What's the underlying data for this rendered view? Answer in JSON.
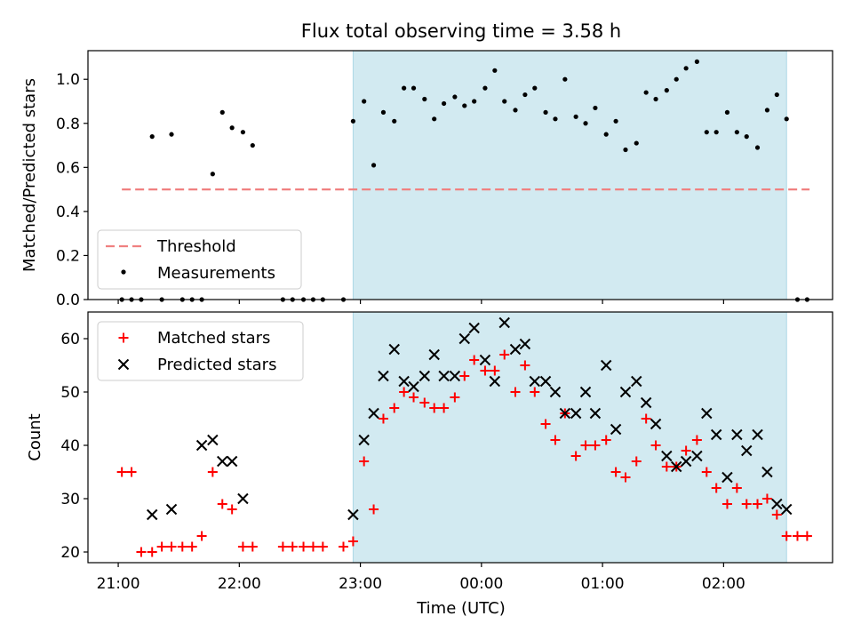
{
  "chart_data": {
    "title": "Flux total observing time = 3.58 h",
    "xlabel": "Time (UTC)",
    "x_ticks": [
      "21:00",
      "22:00",
      "23:00",
      "00:00",
      "01:00",
      "02:00"
    ],
    "x_tick_hours": [
      0,
      1,
      2,
      3,
      4,
      5
    ],
    "x_range_hours": [
      -0.25,
      5.9
    ],
    "x_unit_note": "hours after 21:00 UTC",
    "shaded_span_hours": [
      1.94,
      5.52
    ],
    "colors": {
      "span": "#add8e6",
      "threshold": "#f08080",
      "matched": "#ff0000",
      "predicted": "#000000",
      "measurements": "#000000"
    },
    "panels": [
      {
        "type": "scatter",
        "ylabel": "Matched/Predicted stars",
        "ylim": [
          0,
          1.13
        ],
        "yticks": [
          0.0,
          0.2,
          0.4,
          0.6,
          0.8,
          1.0
        ],
        "ytick_labels": [
          "0.0",
          "0.2",
          "0.4",
          "0.6",
          "0.8",
          "1.0"
        ],
        "legend_position": "lower-left",
        "threshold": {
          "name": "Threshold",
          "value": 0.5,
          "x_range": [
            0.03,
            5.71
          ]
        },
        "series": [
          {
            "name": "Measurements",
            "x": [
              0.03,
              0.11,
              0.19,
              0.28,
              0.36,
              0.44,
              0.53,
              0.61,
              0.69,
              0.78,
              0.86,
              0.94,
              1.03,
              1.11,
              1.36,
              1.44,
              1.53,
              1.61,
              1.69,
              1.86,
              1.94,
              2.03,
              2.11,
              2.19,
              2.28,
              2.36,
              2.44,
              2.53,
              2.61,
              2.69,
              2.78,
              2.86,
              2.94,
              3.03,
              3.11,
              3.19,
              3.28,
              3.36,
              3.44,
              3.53,
              3.61,
              3.69,
              3.78,
              3.86,
              3.94,
              4.03,
              4.11,
              4.19,
              4.28,
              4.36,
              4.44,
              4.53,
              4.61,
              4.69,
              4.78,
              4.86,
              4.94,
              5.03,
              5.11,
              5.19,
              5.28,
              5.36,
              5.44,
              5.52,
              5.61,
              5.69
            ],
            "y": [
              0.0,
              0.0,
              0.0,
              0.74,
              0.0,
              0.75,
              0.0,
              0.0,
              0.0,
              0.57,
              0.85,
              0.78,
              0.76,
              0.7,
              0.0,
              0.0,
              0.0,
              0.0,
              0.0,
              0.0,
              0.81,
              0.9,
              0.61,
              0.85,
              0.81,
              0.96,
              0.96,
              0.91,
              0.82,
              0.89,
              0.92,
              0.88,
              0.9,
              0.96,
              1.04,
              0.9,
              0.86,
              0.93,
              0.96,
              0.85,
              0.82,
              1.0,
              0.83,
              0.8,
              0.87,
              0.75,
              0.81,
              0.68,
              0.71,
              0.94,
              0.91,
              0.95,
              1.0,
              1.05,
              1.08,
              0.76,
              0.76,
              0.85,
              0.76,
              0.74,
              0.69,
              0.86,
              0.93,
              0.82,
              0.0,
              0.0
            ]
          }
        ]
      },
      {
        "type": "scatter",
        "ylabel": "Count",
        "ylim": [
          18,
          65
        ],
        "yticks": [
          20,
          30,
          40,
          50,
          60
        ],
        "ytick_labels": [
          "20",
          "30",
          "40",
          "50",
          "60"
        ],
        "legend_position": "upper-left",
        "series": [
          {
            "name": "Matched stars",
            "marker": "plus",
            "x": [
              0.03,
              0.11,
              0.19,
              0.28,
              0.36,
              0.44,
              0.53,
              0.61,
              0.69,
              0.78,
              0.86,
              0.94,
              1.03,
              1.11,
              1.36,
              1.44,
              1.53,
              1.61,
              1.69,
              1.86,
              1.94,
              2.03,
              2.11,
              2.19,
              2.28,
              2.36,
              2.44,
              2.53,
              2.61,
              2.69,
              2.78,
              2.86,
              2.94,
              3.03,
              3.11,
              3.19,
              3.28,
              3.36,
              3.44,
              3.53,
              3.61,
              3.69,
              3.78,
              3.86,
              3.94,
              4.03,
              4.11,
              4.19,
              4.28,
              4.36,
              4.44,
              4.53,
              4.61,
              4.69,
              4.78,
              4.86,
              4.94,
              5.03,
              5.11,
              5.19,
              5.28,
              5.36,
              5.44,
              5.52,
              5.61,
              5.69
            ],
            "y": [
              35,
              35,
              20,
              20,
              21,
              21,
              21,
              21,
              23,
              35,
              29,
              28,
              21,
              21,
              21,
              21,
              21,
              21,
              21,
              21,
              22,
              37,
              28,
              45,
              47,
              50,
              49,
              48,
              47,
              47,
              49,
              53,
              56,
              54,
              54,
              57,
              50,
              55,
              50,
              44,
              41,
              46,
              38,
              40,
              40,
              41,
              35,
              34,
              37,
              45,
              40,
              36,
              36,
              39,
              41,
              35,
              32,
              29,
              32,
              29,
              29,
              30,
              27,
              23,
              23,
              23
            ]
          },
          {
            "name": "Predicted stars",
            "marker": "x",
            "x": [
              0.28,
              0.44,
              0.69,
              0.78,
              0.86,
              0.94,
              1.03,
              1.94,
              2.03,
              2.11,
              2.19,
              2.28,
              2.36,
              2.44,
              2.53,
              2.61,
              2.69,
              2.78,
              2.86,
              2.94,
              3.03,
              3.11,
              3.19,
              3.28,
              3.36,
              3.44,
              3.53,
              3.61,
              3.69,
              3.78,
              3.86,
              3.94,
              4.03,
              4.11,
              4.19,
              4.28,
              4.36,
              4.44,
              4.53,
              4.61,
              4.69,
              4.78,
              4.86,
              4.94,
              5.03,
              5.11,
              5.19,
              5.28,
              5.36,
              5.44,
              5.52
            ],
            "y": [
              27,
              28,
              40,
              41,
              37,
              37,
              30,
              27,
              41,
              46,
              53,
              58,
              52,
              51,
              53,
              57,
              53,
              53,
              60,
              62,
              56,
              52,
              63,
              58,
              59,
              52,
              52,
              50,
              46,
              46,
              50,
              46,
              55,
              43,
              50,
              52,
              48,
              44,
              38,
              36,
              37,
              38,
              46,
              42,
              34,
              42,
              39,
              42,
              35,
              29,
              28
            ]
          }
        ]
      }
    ]
  }
}
